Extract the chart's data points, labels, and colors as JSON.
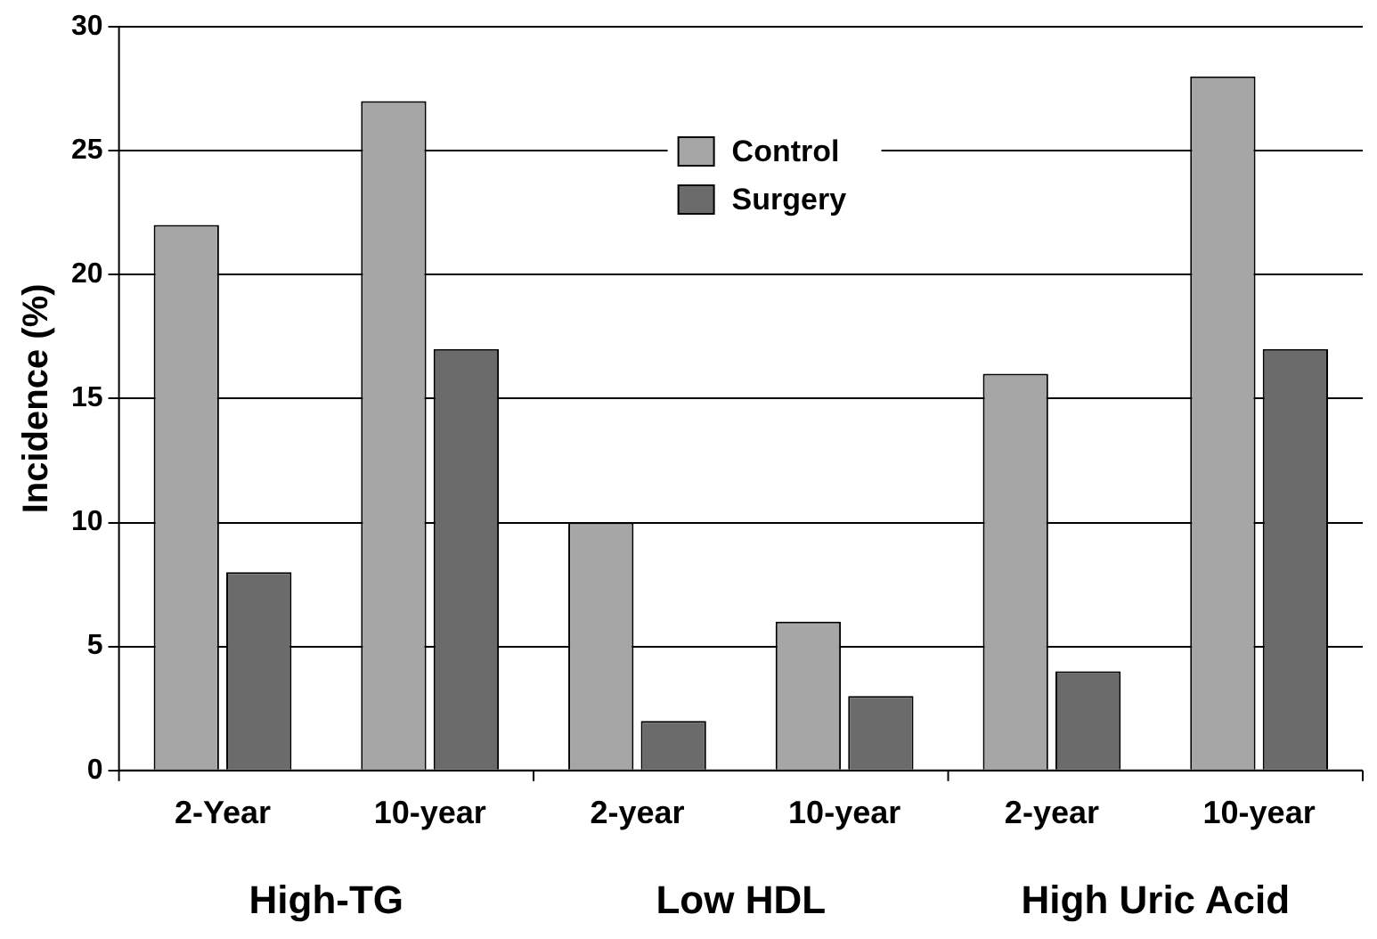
{
  "chart_data": {
    "type": "bar",
    "ylabel": "Incidence (%)",
    "categories": [
      "2-Year",
      "10-year",
      "2-year",
      "10-year",
      "2-year",
      "10-year"
    ],
    "series": [
      {
        "name": "Control",
        "color": "#a6a6a6",
        "values": [
          22,
          27,
          10,
          6,
          16,
          28
        ]
      },
      {
        "name": "Surgery",
        "color": "#6b6b6b",
        "values": [
          8,
          17,
          2,
          3,
          4,
          17
        ]
      }
    ],
    "annotations": [
      "High-TG",
      "Low HDL",
      "High Uric Acid"
    ],
    "ylim": [
      0,
      30
    ],
    "yticks": [
      0,
      5,
      10,
      15,
      20,
      25,
      30
    ],
    "grid": "y",
    "legend": "top"
  }
}
